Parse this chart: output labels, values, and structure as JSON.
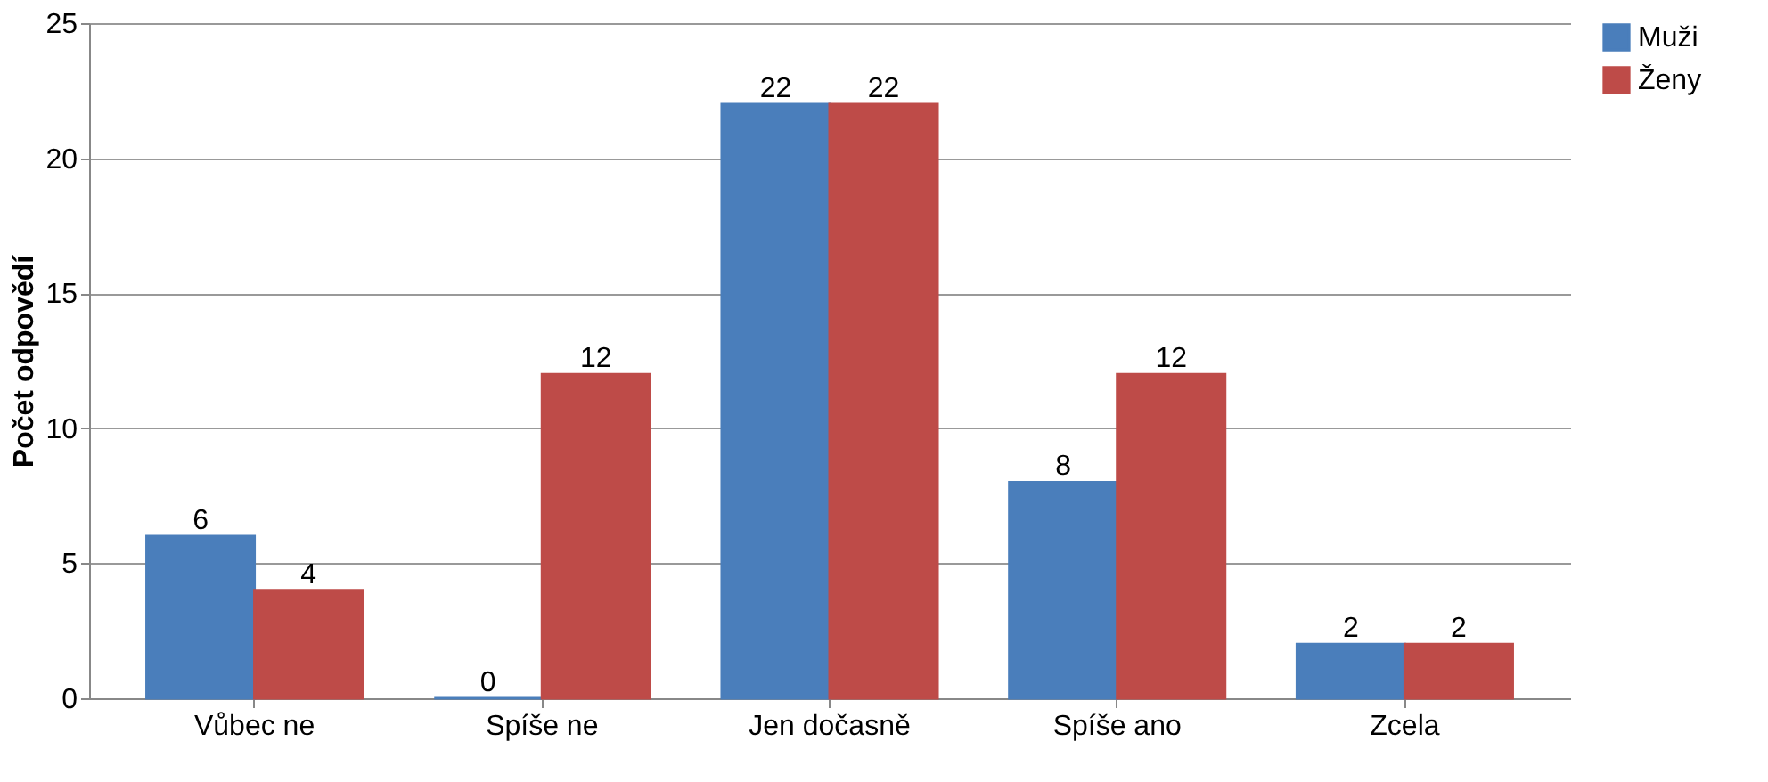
{
  "chart_data": {
    "type": "bar",
    "ylabel": "Počet odpovědí",
    "categories": [
      "Vůbec ne",
      "Spíše ne",
      "Jen dočasně",
      "Spíše ano",
      "Zcela"
    ],
    "series": [
      {
        "name": "Muži",
        "color": "#4a7ebb",
        "values": [
          6,
          0,
          22,
          8,
          2
        ]
      },
      {
        "name": "Ženy",
        "color": "#be4b48",
        "values": [
          4,
          12,
          22,
          12,
          2
        ]
      }
    ],
    "ylim": [
      0,
      25
    ],
    "yticks": [
      0,
      5,
      10,
      15,
      20,
      25
    ],
    "grid": "y",
    "legend": "right",
    "data_labels": true
  }
}
